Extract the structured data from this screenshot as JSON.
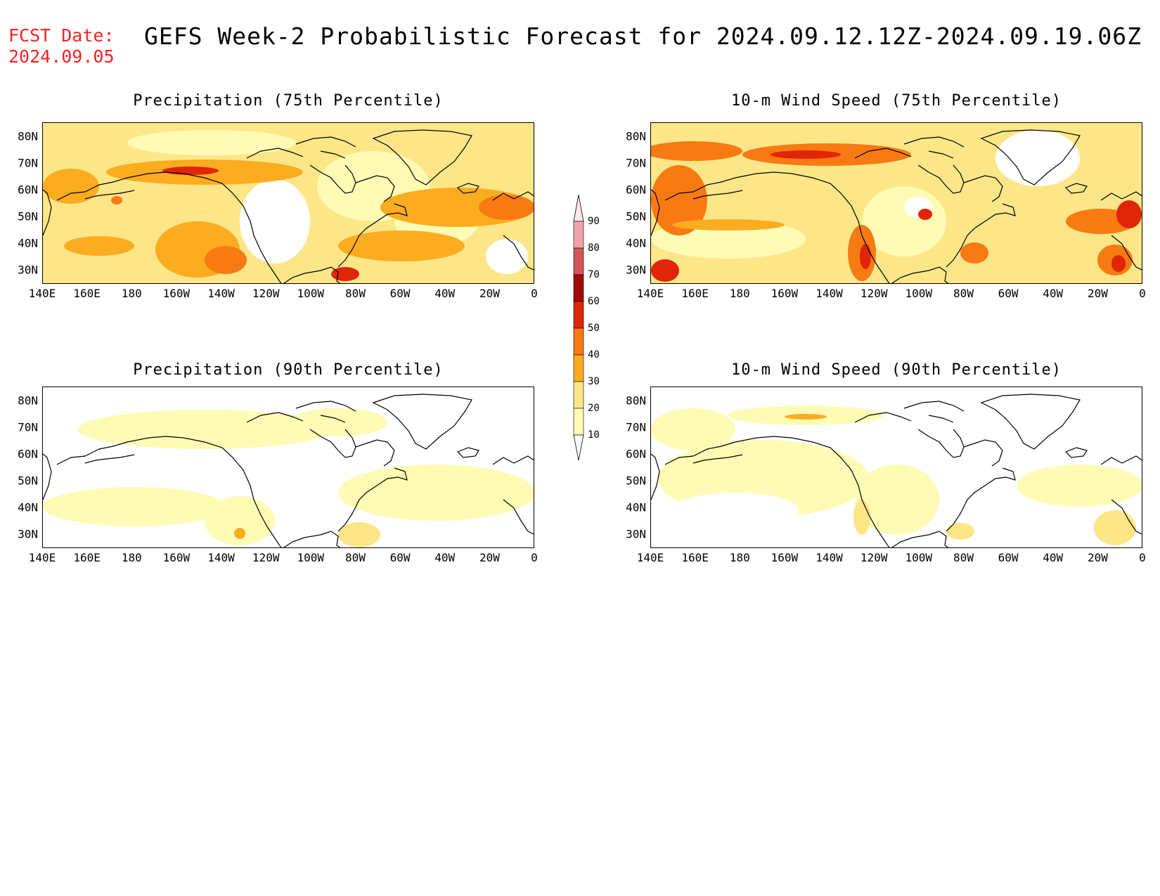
{
  "header": {
    "fcst_label": "FCST Date:",
    "fcst_date": "2024.09.05",
    "title": "GEFS Week-2 Probabilistic Forecast for 2024.09.12.12Z-2024.09.19.06Z"
  },
  "panels": [
    {
      "title": "Precipitation (75th Percentile)",
      "field": "precip",
      "percentile": 75
    },
    {
      "title": "10-m Wind Speed (75th Percentile)",
      "field": "wind",
      "percentile": 75
    },
    {
      "title": "Precipitation (90th Percentile)",
      "field": "precip",
      "percentile": 90
    },
    {
      "title": "10-m Wind Speed (90th Percentile)",
      "field": "wind",
      "percentile": 90
    }
  ],
  "map_axes": {
    "lat_labels": [
      "80N",
      "70N",
      "60N",
      "50N",
      "40N",
      "30N"
    ],
    "lon_labels": [
      "140E",
      "160E",
      "180",
      "160W",
      "140W",
      "120W",
      "100W",
      "80W",
      "60W",
      "40W",
      "20W",
      "0"
    ]
  },
  "legend": {
    "levels": [
      "10",
      "20",
      "30",
      "40",
      "50",
      "60",
      "70",
      "80",
      "90"
    ],
    "colors": [
      "#fffbb5",
      "#fde688",
      "#fcac1f",
      "#f87a12",
      "#e02508",
      "#a30a08",
      "#d4555a",
      "#f2a3a8",
      "#fde7ea"
    ]
  }
}
